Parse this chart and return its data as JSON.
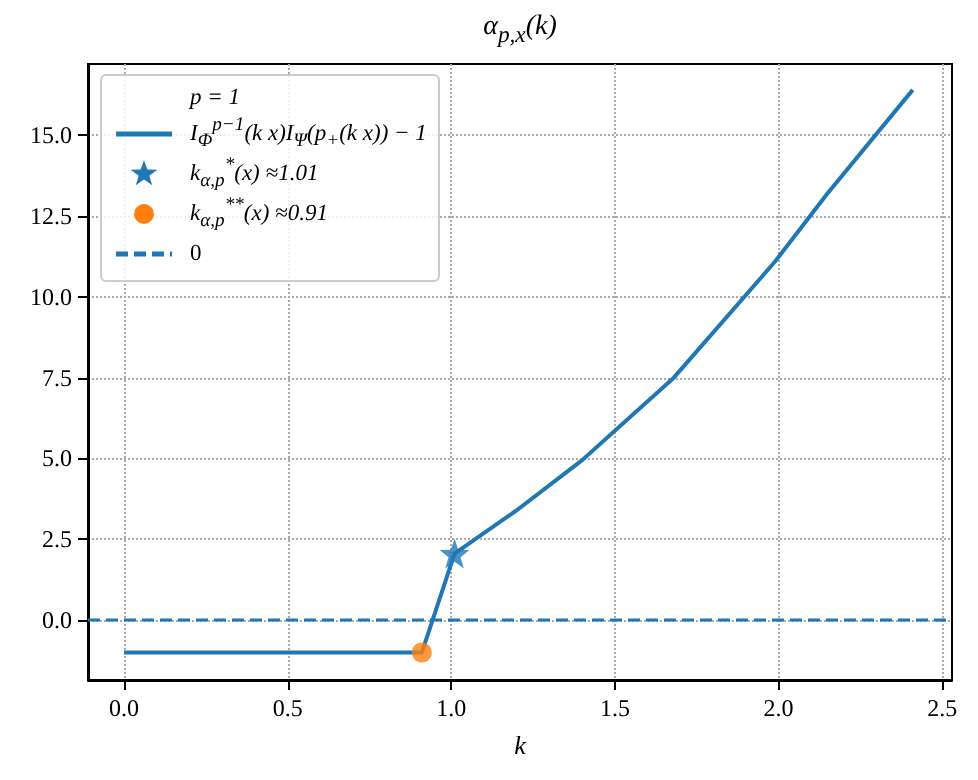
{
  "chart_data": {
    "type": "line",
    "title": "α$_{p,x}$(k)",
    "xlabel": "k",
    "legend_title": "p = 1",
    "legend": "top left",
    "grid": true,
    "xlim": [
      -0.11,
      2.53
    ],
    "xticks": [
      {
        "value": 0,
        "label": "0.0"
      },
      {
        "value": 0.5,
        "label": "0.5"
      },
      {
        "value": 1,
        "label": "1.0"
      },
      {
        "value": 1.5,
        "label": "1.5"
      },
      {
        "value": 2,
        "label": "2.0"
      },
      {
        "value": 2.5,
        "label": "2.5"
      }
    ],
    "ylim": [
      -1.85,
      17.2
    ],
    "yticks": [
      {
        "value": 0,
        "label": "0.0"
      },
      {
        "value": 2.5,
        "label": "2.5"
      },
      {
        "value": 5,
        "label": "5.0"
      },
      {
        "value": 7.5,
        "label": "7.5"
      },
      {
        "value": 10,
        "label": "10.0"
      },
      {
        "value": 12.5,
        "label": "12.5"
      },
      {
        "value": 15,
        "label": "15.0"
      }
    ],
    "series": [
      {
        "name": "I$_{Φ}$$^{p−1}$(k x)I$_{Ψ}$(p$_{+}$(k x)) − 1",
        "type": "line",
        "marker": "none",
        "color": "#1f77b4",
        "x": [
          0,
          0.91,
          1.01,
          1.2,
          1.4,
          1.68,
          1.99,
          2.15,
          2.41
        ],
        "values": [
          -1,
          -1,
          2.06,
          3.4,
          4.95,
          7.5,
          11.1,
          13.2,
          16.4
        ]
      },
      {
        "name": "k$_{α,p}$$^{*}$(x) ≈1.01",
        "type": "scatter",
        "marker": "star",
        "color": "#1f77b4",
        "x": [
          1.01
        ],
        "values": [
          2.06
        ]
      },
      {
        "name": "k$_{α,p}$$^{**}$(x) ≈0.91",
        "type": "scatter",
        "marker": "circle",
        "color": "#ff7f0e",
        "x": [
          0.91
        ],
        "values": [
          -1
        ]
      }
    ],
    "ref_lines": [
      {
        "axis": "y",
        "value": 0,
        "label": "0",
        "color": "#1f77b4",
        "line_style": "dashed"
      }
    ]
  }
}
